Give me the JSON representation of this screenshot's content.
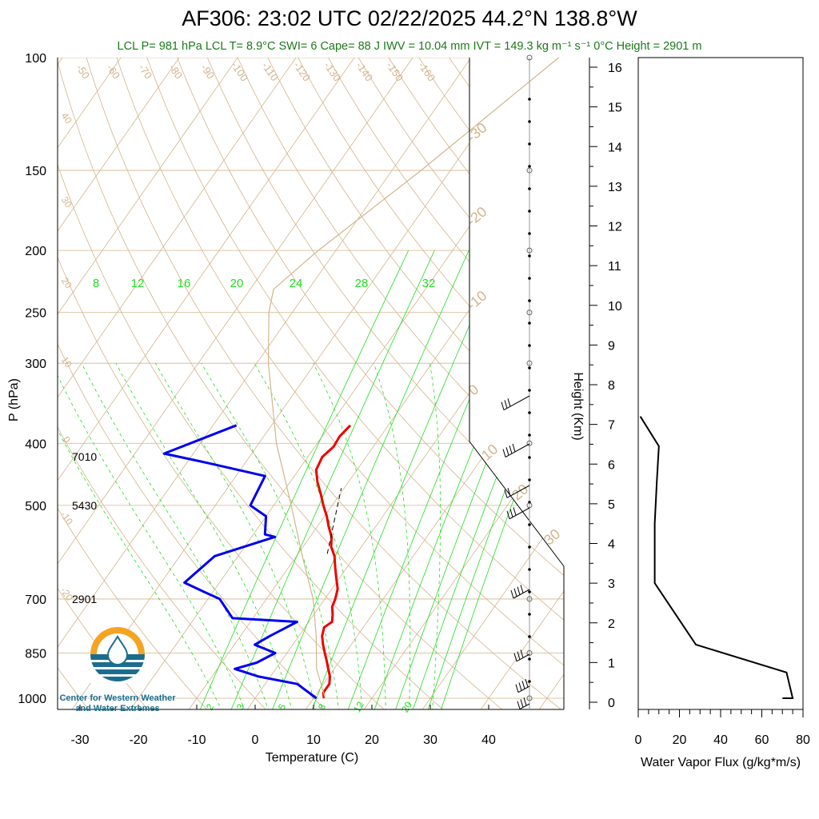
{
  "title": "AF306: 23:02 UTC 02/22/2025  44.2°N 138.8°W",
  "subtitle": "LCL P= 981 hPa  LCL T= 8.9°C  SWI= 6  Cape= 88 J  IWV = 10.04 mm  IVT = 149.3 kg m⁻¹ s⁻¹  0°C Height = 2901 m",
  "colors": {
    "temperature": "#ee0000",
    "dewpoint": "#0000ee",
    "isotherm_adiabat": "#d2b48c",
    "mixing_ratio": "#22dd22",
    "parcel": "#000000",
    "subtitle": "#1a7a1a"
  },
  "logo": {
    "icon": "water-drop-icon",
    "line1": "Center for Western Weather",
    "line2": "and Water Extremes"
  },
  "chart_data": [
    {
      "type": "line",
      "name": "skew-t",
      "xlabel": "Temperature (C)",
      "ylabel": "P (hPa)",
      "xlim": [
        -33,
        52
      ],
      "ylim": [
        1000,
        100
      ],
      "yscale": "log",
      "skew_deg_per_decade": 77,
      "x_ticks": [
        "-30",
        "-20",
        "-10",
        "0",
        "10",
        "20",
        "30",
        "40"
      ],
      "y_ticks": [
        "100",
        "150",
        "200",
        "250",
        "300",
        "400",
        "500",
        "700",
        "850",
        "1000"
      ],
      "height_labels": [
        {
          "p": 420,
          "text": "7010"
        },
        {
          "p": 500,
          "text": "5430"
        },
        {
          "p": 700,
          "text": "2901"
        }
      ],
      "isotherm_labels": [
        "-50",
        "-60",
        "-70",
        "-80",
        "-90",
        "-100",
        "-110",
        "-120",
        "-130",
        "-140",
        "-150",
        "-160",
        "40",
        "30",
        "20",
        "10",
        "0",
        "-10",
        "-20",
        "-30"
      ],
      "adiabat_labels": [
        "-30",
        "-20",
        "-10",
        "0",
        "10",
        "20",
        "30"
      ],
      "mixing_ratio_labels": [
        "8",
        "12",
        "16",
        "20",
        "24",
        "28",
        "32"
      ],
      "mixing_ratio_bottom_labels": [
        "2",
        "3",
        "5",
        "8",
        "12",
        "20"
      ],
      "series": [
        {
          "name": "Temperature",
          "p": [
            1000,
            980,
            950,
            925,
            900,
            875,
            850,
            825,
            800,
            775,
            760,
            740,
            720,
            700,
            675,
            650,
            625,
            600,
            580,
            560,
            540,
            520,
            500,
            480,
            460,
            440,
            420,
            405,
            390,
            375
          ],
          "t": [
            11.8,
            11.0,
            11.0,
            10.2,
            9.0,
            7.8,
            6.5,
            5.2,
            4.0,
            3.3,
            4.0,
            3.2,
            2.2,
            1.8,
            1.0,
            -0.5,
            -2.0,
            -3.5,
            -5.2,
            -6.3,
            -8.0,
            -9.6,
            -11.5,
            -13.3,
            -15.3,
            -17.0,
            -17.5,
            -16.8,
            -17.0,
            -16.5
          ]
        },
        {
          "name": "Dewpoint",
          "p": [
            1000,
            950,
            925,
            900,
            880,
            850,
            825,
            800,
            780,
            760,
            750,
            700,
            680,
            660,
            600,
            560,
            555,
            520,
            500,
            450,
            430,
            415,
            375
          ],
          "t": [
            10.5,
            5.5,
            -2.0,
            -7.0,
            -4.0,
            -2.0,
            -6.5,
            -5.0,
            -3.5,
            -2.0,
            -13.5,
            -18.0,
            -22.0,
            -26.0,
            -24.0,
            -16.0,
            -18.0,
            -20.0,
            -24.0,
            -25.0,
            -36.0,
            -45.0,
            -36.0
          ]
        },
        {
          "name": "Parcel",
          "p": [
            595,
            470
          ],
          "t": [
            -5.0,
            -10.5
          ]
        },
        {
          "name": "Environment reference",
          "p": [
            1000,
            900,
            800,
            700,
            600,
            500,
            400,
            300,
            250,
            230,
            200,
            150,
            100
          ],
          "t": [
            12,
            7,
            3,
            -2,
            -9,
            -17,
            -27,
            -38,
            -44,
            -46,
            -43,
            -35,
            -25
          ]
        }
      ]
    },
    {
      "type": "line",
      "name": "water-vapor-flux",
      "xlabel": "Water Vapor Flux (g/kg*m/s)",
      "ylabel": "Height (Km)",
      "xlim": [
        0,
        80
      ],
      "ylim": [
        0,
        16.3
      ],
      "x_ticks": [
        "0",
        "20",
        "40",
        "60",
        "80"
      ],
      "y_ticks": [
        "0",
        "1",
        "2",
        "3",
        "4",
        "5",
        "6",
        "7",
        "8",
        "9",
        "10",
        "11",
        "12",
        "13",
        "14",
        "15",
        "16"
      ],
      "series": [
        {
          "name": "flux",
          "x": [
            70,
            75,
            72,
            28,
            8,
            8,
            9,
            10,
            1
          ],
          "y": [
            0.1,
            0.1,
            0.75,
            1.45,
            3.0,
            4.5,
            5.55,
            6.45,
            7.2
          ]
        }
      ]
    }
  ]
}
